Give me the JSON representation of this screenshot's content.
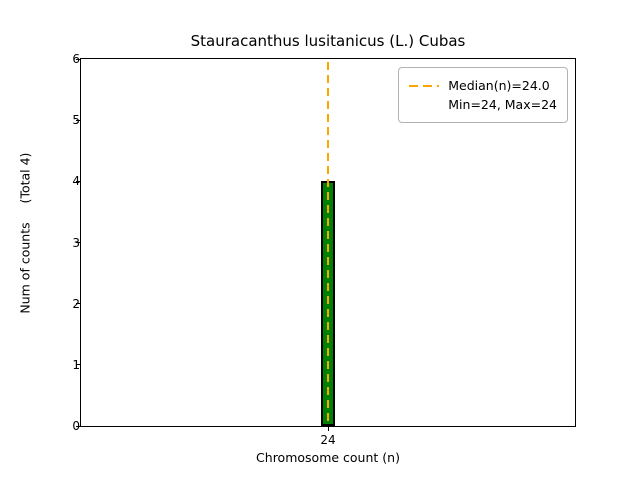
{
  "chart_data": {
    "type": "bar",
    "title": "Stauracanthus lusitanicus (L.) Cubas",
    "xlabel": "Chromosome count (n)",
    "ylabel": "Num of counts",
    "ylabel_secondary": "(Total 4)",
    "categories": [
      "24"
    ],
    "values": [
      4
    ],
    "total_counts": 4,
    "ylim": [
      0,
      6
    ],
    "yticks": [
      0,
      1,
      2,
      3,
      4,
      5,
      6
    ],
    "xticks": [
      "24"
    ],
    "stats": {
      "median": "24.0",
      "min": "24",
      "max": "24"
    },
    "legend": {
      "position": "upper right",
      "entries": [
        "Median(n)=24.0",
        "Min=24, Max=24"
      ]
    },
    "median_line": {
      "x": "24",
      "style": "dashed"
    },
    "colors": {
      "bar_fill": "#008000",
      "bar_edge": "#000000",
      "median_line": "#ffa500",
      "axis": "#000000",
      "background": "#ffffff"
    },
    "grid": false
  }
}
